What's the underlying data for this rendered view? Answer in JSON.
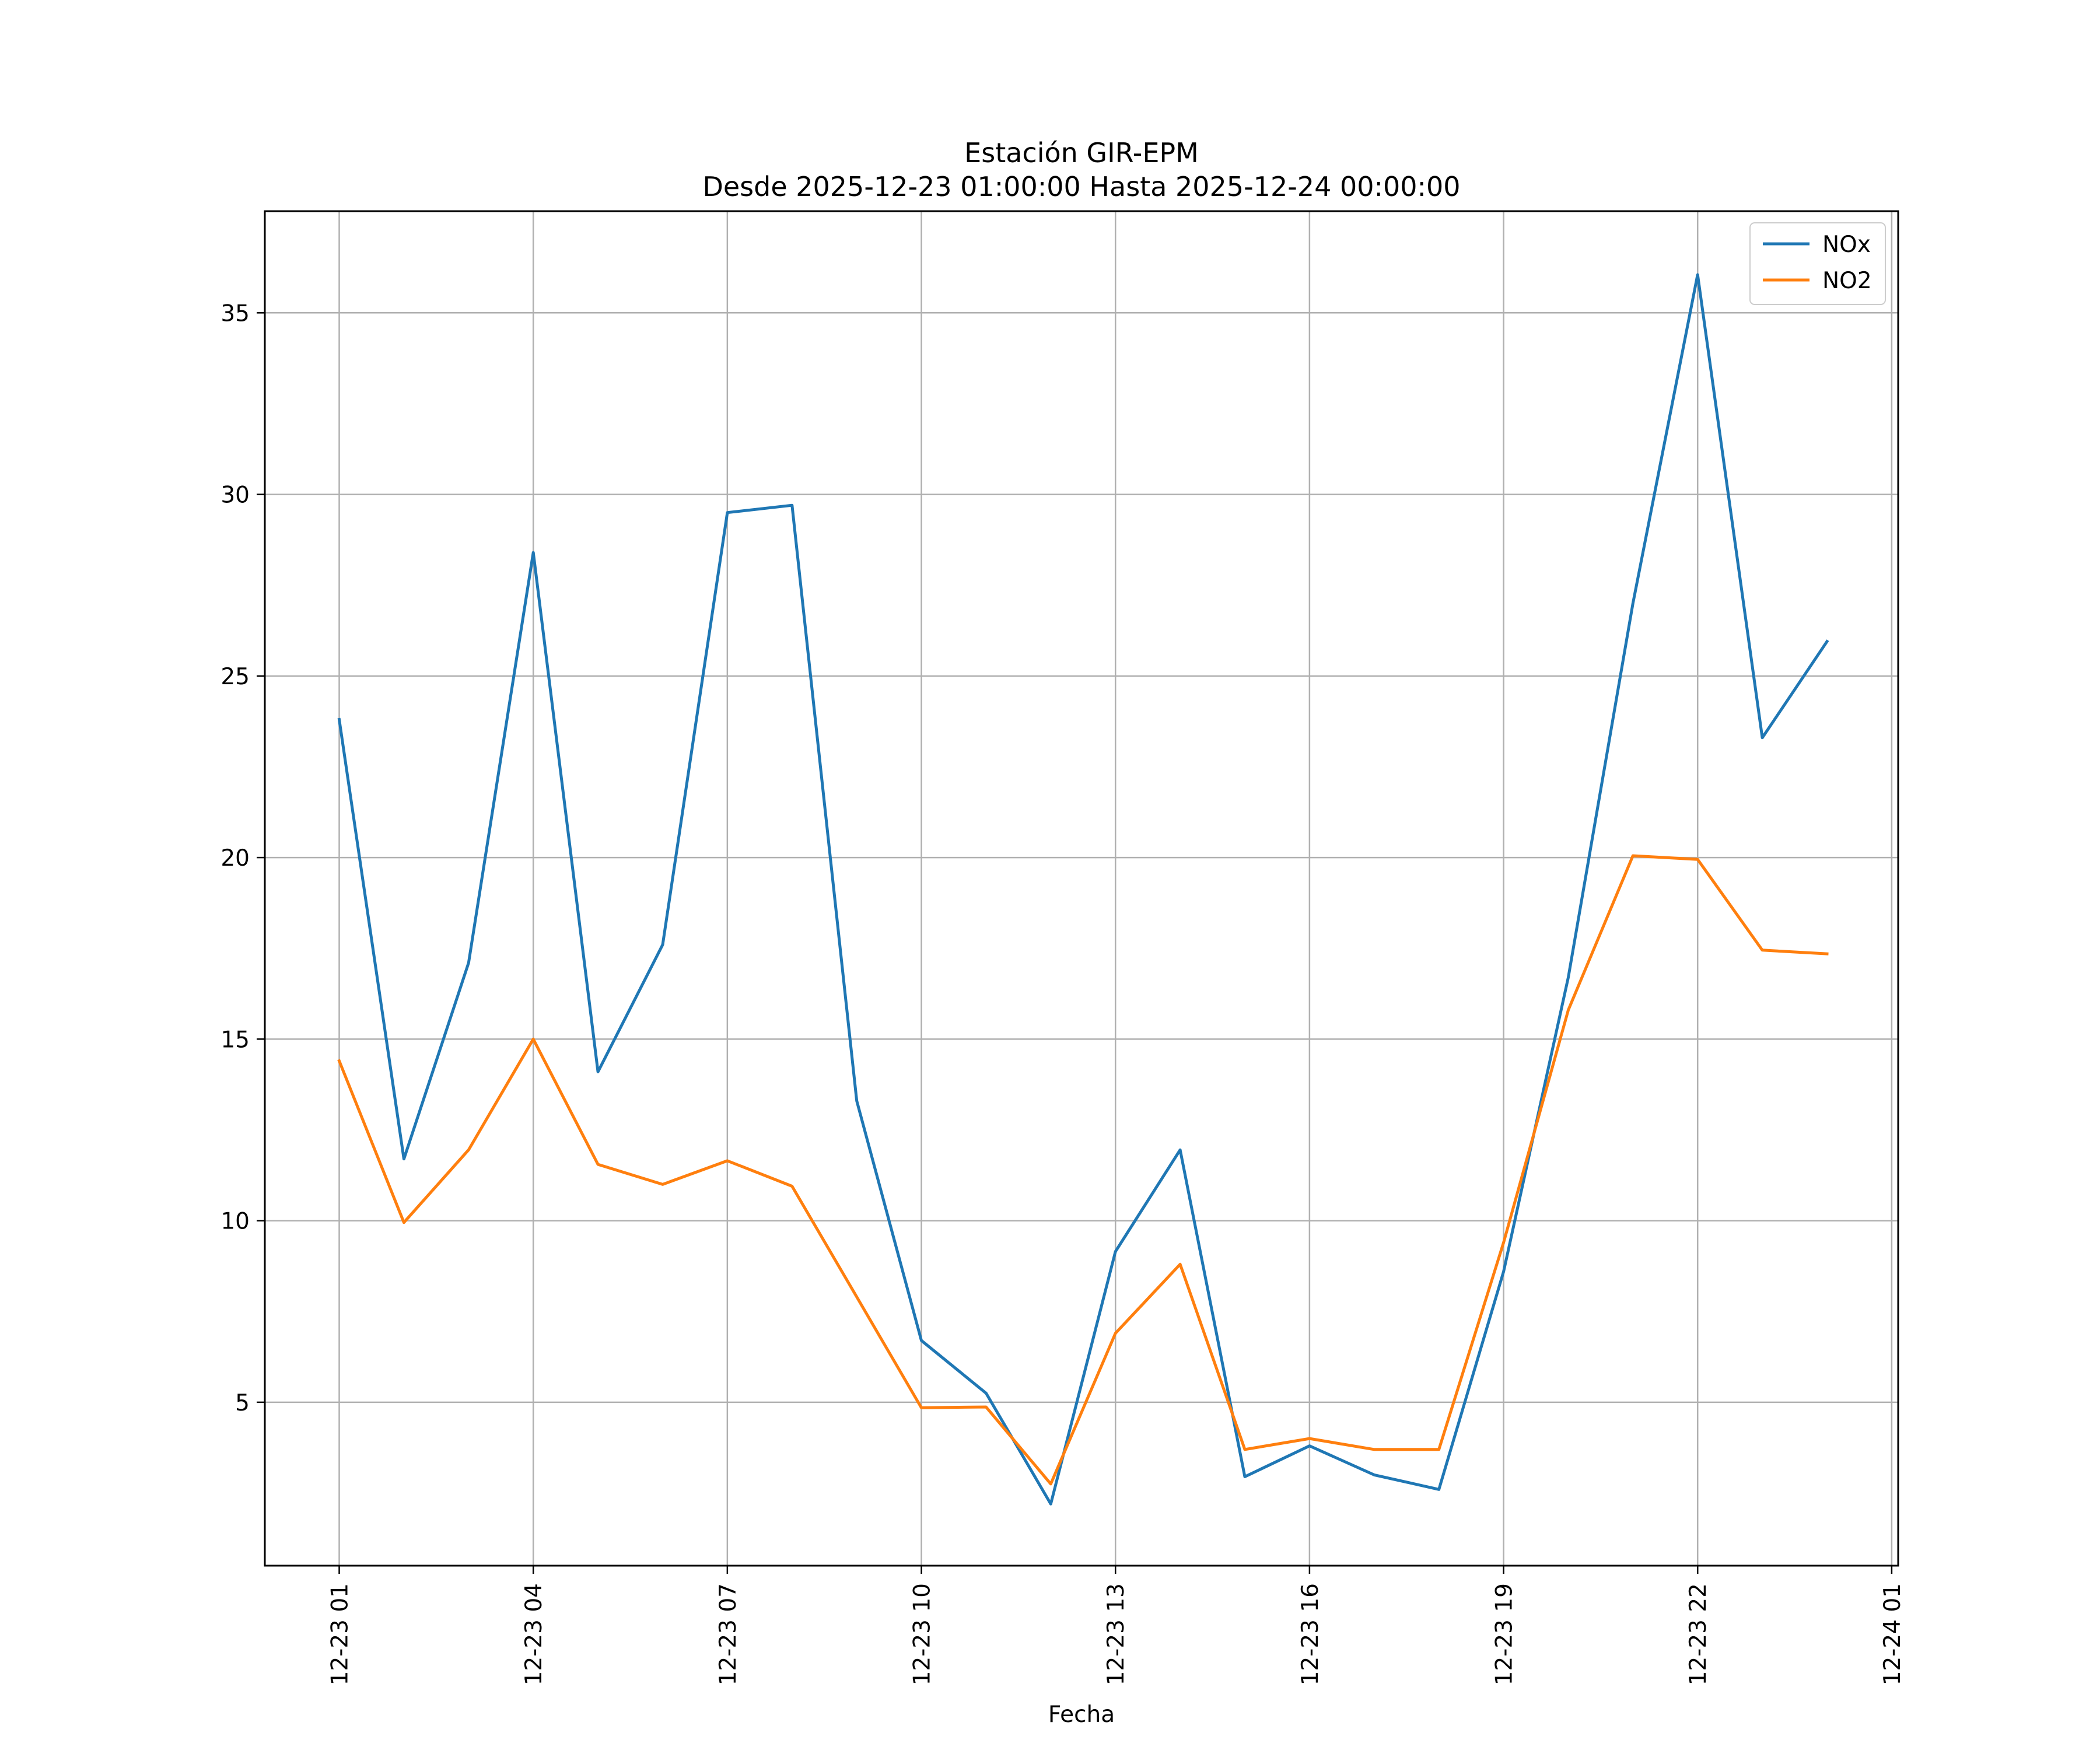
{
  "chart_data": {
    "type": "line",
    "title": [
      "Estación GIR-EPM",
      "Desde 2025-12-23 01:00:00 Hasta 2025-12-24 00:00:00"
    ],
    "xlabel": "Fecha",
    "ylabel": "",
    "x": [
      "12-23 01:00",
      "12-23 02:00",
      "12-23 03:00",
      "12-23 04:00",
      "12-23 05:00",
      "12-23 06:00",
      "12-23 07:00",
      "12-23 08:00",
      "12-23 09:00",
      "12-23 10:00",
      "12-23 11:00",
      "12-23 12:00",
      "12-23 13:00",
      "12-23 14:00",
      "12-23 15:00",
      "12-23 16:00",
      "12-23 17:00",
      "12-23 18:00",
      "12-23 19:00",
      "12-23 20:00",
      "12-23 21:00",
      "12-23 22:00",
      "12-23 23:00",
      "12-24 00:00"
    ],
    "x_ticks": [
      "12-23 01",
      "12-23 04",
      "12-23 07",
      "12-23 10",
      "12-23 13",
      "12-23 16",
      "12-23 19",
      "12-23 22",
      "12-24 01"
    ],
    "x_tick_hours": [
      0,
      3,
      6,
      9,
      12,
      15,
      18,
      21,
      24
    ],
    "x_range_hours": [
      -1.15,
      24.1
    ],
    "y_ticks": [
      5,
      10,
      15,
      20,
      25,
      30,
      35
    ],
    "ylim": [
      0.5,
      37.8
    ],
    "grid": true,
    "legend_position": "upper right",
    "series": [
      {
        "name": "NOx",
        "color": "#1f77b4",
        "values": [
          23.8,
          11.7,
          17.1,
          28.4,
          14.1,
          17.6,
          29.5,
          29.7,
          13.3,
          6.7,
          5.25,
          2.2,
          9.15,
          11.95,
          2.95,
          3.8,
          3.0,
          2.6,
          8.6,
          16.7,
          27.0,
          36.05,
          23.3,
          25.95
        ]
      },
      {
        "name": "NO2",
        "color": "#ff7f0e",
        "values": [
          14.4,
          9.95,
          11.95,
          15.0,
          11.55,
          11.0,
          11.65,
          10.95,
          7.9,
          4.85,
          4.87,
          2.75,
          6.9,
          8.8,
          3.7,
          4.0,
          3.7,
          3.7,
          9.4,
          15.8,
          20.05,
          19.95,
          17.45,
          17.35
        ]
      }
    ]
  }
}
